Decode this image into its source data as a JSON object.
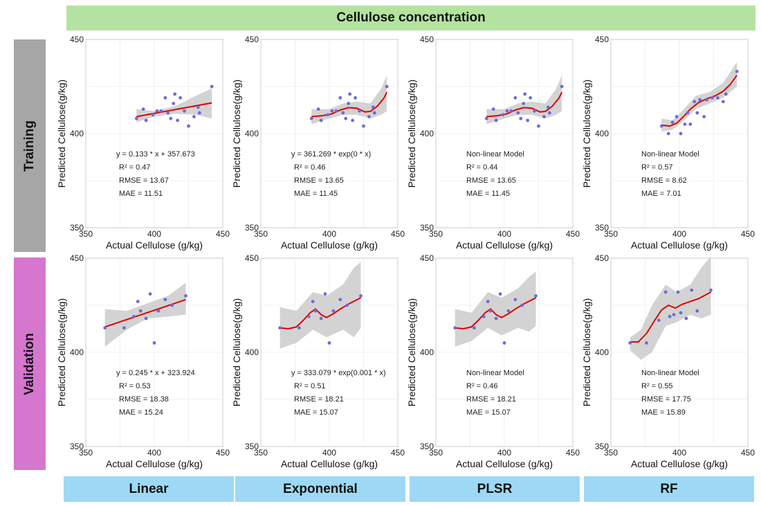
{
  "header": {
    "title": "Cellulose concentration"
  },
  "rows": [
    {
      "label": "Training",
      "color": "#a6a6a6"
    },
    {
      "label": "Validation",
      "color": "#d576cf"
    }
  ],
  "columns": [
    "Linear",
    "Exponential",
    "PLSR",
    "RF"
  ],
  "colors": {
    "band": "#d3d3d3",
    "fit": "#e00000",
    "point": "#6b6bde",
    "header": "#b4e3a1",
    "footer": "#9dd9f5"
  },
  "chart_data": [
    {
      "type": "scatter",
      "row": "Training",
      "model": "Linear",
      "xlabel": "Actual Cellulose (g/kg)",
      "ylabel": "Predicted Cellulose(g/kg)",
      "xlim": [
        350,
        450
      ],
      "ylim": [
        350,
        450
      ],
      "xticks": [
        350,
        400,
        450
      ],
      "yticks": [
        350,
        400,
        450
      ],
      "grid": true,
      "points": [
        [
          387,
          408
        ],
        [
          392,
          413
        ],
        [
          394,
          407
        ],
        [
          399,
          410
        ],
        [
          402,
          412
        ],
        [
          405,
          412
        ],
        [
          408,
          419
        ],
        [
          410,
          411
        ],
        [
          412,
          408
        ],
        [
          414,
          416
        ],
        [
          415,
          421
        ],
        [
          417,
          407
        ],
        [
          419,
          419
        ],
        [
          422,
          412
        ],
        [
          425,
          404
        ],
        [
          429,
          409
        ],
        [
          432,
          414
        ],
        [
          433,
          411
        ],
        [
          442,
          425
        ]
      ],
      "fit": [
        [
          387,
          409
        ],
        [
          442,
          416.3
        ]
      ],
      "band": [
        [
          387,
          406,
          413
        ],
        [
          400,
          409,
          412
        ],
        [
          415,
          410.5,
          414.5
        ],
        [
          430,
          410,
          420
        ],
        [
          442,
          408,
          424
        ]
      ],
      "annotations": [
        "y = 0.133 * x + 357.673",
        "R² = 0.47",
        "RMSE = 13.67",
        "MAE = 11.51"
      ]
    },
    {
      "type": "scatter",
      "row": "Training",
      "model": "Exponential",
      "xlabel": "Actual Cellulose (g/kg)",
      "ylabel": "Predicted Cellulose(g/kg)",
      "xlim": [
        350,
        450
      ],
      "ylim": [
        350,
        450
      ],
      "xticks": [
        350,
        400,
        450
      ],
      "yticks": [
        350,
        400,
        450
      ],
      "grid": true,
      "points": [
        [
          387,
          408
        ],
        [
          392,
          413
        ],
        [
          394,
          407
        ],
        [
          399,
          410
        ],
        [
          402,
          412
        ],
        [
          405,
          412
        ],
        [
          408,
          419
        ],
        [
          410,
          411
        ],
        [
          412,
          408
        ],
        [
          414,
          416
        ],
        [
          415,
          421
        ],
        [
          417,
          407
        ],
        [
          419,
          419
        ],
        [
          422,
          412
        ],
        [
          425,
          404
        ],
        [
          429,
          409
        ],
        [
          432,
          414
        ],
        [
          433,
          411
        ],
        [
          442,
          425
        ]
      ],
      "fit": [
        [
          387,
          409
        ],
        [
          395,
          409.5
        ],
        [
          402,
          410.5
        ],
        [
          408,
          412.5
        ],
        [
          414,
          413.8
        ],
        [
          420,
          413.5
        ],
        [
          426,
          411.5
        ],
        [
          430,
          411.8
        ],
        [
          435,
          414.5
        ],
        [
          440,
          419
        ],
        [
          442,
          422
        ]
      ],
      "band": [
        [
          387,
          405,
          413
        ],
        [
          400,
          408,
          413
        ],
        [
          410,
          410,
          416
        ],
        [
          420,
          410,
          417
        ],
        [
          430,
          408,
          416
        ],
        [
          438,
          410,
          424
        ],
        [
          442,
          412,
          431
        ]
      ],
      "annotations": [
        "y = 361.269 * exp(0 * x)",
        "R² = 0.46",
        "RMSE = 13.65",
        "MAE = 11.45"
      ]
    },
    {
      "type": "scatter",
      "row": "Training",
      "model": "PLSR",
      "xlabel": "Actual Cellulose (g/kg)",
      "ylabel": "Predicted Cellulose(g/kg)",
      "xlim": [
        350,
        450
      ],
      "ylim": [
        350,
        450
      ],
      "xticks": [
        350,
        400,
        450
      ],
      "yticks": [
        350,
        400,
        450
      ],
      "grid": true,
      "points": [
        [
          387,
          408
        ],
        [
          392,
          413
        ],
        [
          394,
          407
        ],
        [
          399,
          410
        ],
        [
          402,
          412
        ],
        [
          405,
          412
        ],
        [
          408,
          419
        ],
        [
          410,
          411
        ],
        [
          412,
          408
        ],
        [
          414,
          416
        ],
        [
          415,
          421
        ],
        [
          417,
          407
        ],
        [
          419,
          419
        ],
        [
          422,
          412
        ],
        [
          425,
          404
        ],
        [
          429,
          409
        ],
        [
          432,
          414
        ],
        [
          433,
          411
        ],
        [
          442,
          425
        ]
      ],
      "fit": [
        [
          387,
          409
        ],
        [
          395,
          409.5
        ],
        [
          402,
          410.5
        ],
        [
          408,
          412.5
        ],
        [
          414,
          413.8
        ],
        [
          420,
          413.5
        ],
        [
          426,
          411.5
        ],
        [
          430,
          411.8
        ],
        [
          435,
          414.5
        ],
        [
          440,
          419
        ],
        [
          442,
          422
        ]
      ],
      "band": [
        [
          387,
          405,
          413
        ],
        [
          400,
          408,
          413
        ],
        [
          410,
          410,
          416
        ],
        [
          420,
          410,
          417
        ],
        [
          430,
          408,
          416
        ],
        [
          438,
          410,
          424
        ],
        [
          442,
          412,
          431
        ]
      ],
      "annotations": [
        "Non-linear Model",
        "R² = 0.44",
        "RMSE = 13.65",
        "MAE = 11.45"
      ]
    },
    {
      "type": "scatter",
      "row": "Training",
      "model": "RF",
      "xlabel": "Actual Cellulose (g/kg)",
      "ylabel": "Predicted Cellulose(g/kg)",
      "xlim": [
        350,
        450
      ],
      "ylim": [
        350,
        450
      ],
      "xticks": [
        350,
        400,
        450
      ],
      "yticks": [
        350,
        400,
        450
      ],
      "grid": true,
      "points": [
        [
          387,
          404
        ],
        [
          392,
          400
        ],
        [
          395,
          406
        ],
        [
          398,
          409
        ],
        [
          401,
          400
        ],
        [
          404,
          405
        ],
        [
          406,
          411
        ],
        [
          408,
          405
        ],
        [
          411,
          417
        ],
        [
          413,
          411
        ],
        [
          415,
          418
        ],
        [
          418,
          409
        ],
        [
          420,
          418
        ],
        [
          424,
          419
        ],
        [
          428,
          419
        ],
        [
          432,
          417
        ],
        [
          434,
          421
        ],
        [
          442,
          433
        ]
      ],
      "fit": [
        [
          387,
          404.5
        ],
        [
          393,
          404
        ],
        [
          398,
          405.5
        ],
        [
          403,
          409
        ],
        [
          408,
          413
        ],
        [
          414,
          416.5
        ],
        [
          420,
          418.5
        ],
        [
          426,
          420
        ],
        [
          432,
          422.5
        ],
        [
          437,
          426
        ],
        [
          442,
          431
        ]
      ],
      "band": [
        [
          387,
          401,
          408
        ],
        [
          395,
          402,
          407
        ],
        [
          402,
          406,
          412
        ],
        [
          412,
          413,
          420
        ],
        [
          422,
          416,
          422
        ],
        [
          432,
          419,
          427
        ],
        [
          442,
          425,
          438
        ]
      ],
      "annotations": [
        "Non-linear Model",
        "R² = 0.57",
        "RMSE = 8.62",
        "MAE = 7.01"
      ]
    },
    {
      "type": "scatter",
      "row": "Validation",
      "model": "Linear",
      "xlabel": "Actual Cellulose (g/kg)",
      "ylabel": "Predicted Cellulose(g/kg)",
      "xlim": [
        350,
        450
      ],
      "ylim": [
        350,
        450
      ],
      "xticks": [
        350,
        400,
        450
      ],
      "yticks": [
        350,
        400,
        450
      ],
      "grid": true,
      "points": [
        [
          364,
          413
        ],
        [
          378,
          413
        ],
        [
          385,
          419
        ],
        [
          388,
          427
        ],
        [
          390,
          422
        ],
        [
          394,
          418
        ],
        [
          397,
          431
        ],
        [
          400,
          405
        ],
        [
          403,
          422
        ],
        [
          408,
          428
        ],
        [
          413,
          425
        ],
        [
          423,
          430
        ]
      ],
      "fit": [
        [
          364,
          413.5
        ],
        [
          423,
          428
        ]
      ],
      "band": [
        [
          364,
          403,
          423
        ],
        [
          380,
          412,
          422
        ],
        [
          395,
          418,
          426
        ],
        [
          410,
          419,
          430
        ],
        [
          423,
          420,
          437
        ]
      ],
      "annotations": [
        "y = 0.245 * x + 323.924",
        "R² = 0.53",
        "RMSE = 18.38",
        "MAE = 15.24"
      ]
    },
    {
      "type": "scatter",
      "row": "Validation",
      "model": "Exponential",
      "xlabel": "Actual Cellulose (g/kg)",
      "ylabel": "Predicted Cellulose(g/kg)",
      "xlim": [
        350,
        450
      ],
      "ylim": [
        350,
        450
      ],
      "xticks": [
        350,
        400,
        450
      ],
      "yticks": [
        350,
        400,
        450
      ],
      "grid": true,
      "points": [
        [
          364,
          413
        ],
        [
          378,
          413
        ],
        [
          385,
          419
        ],
        [
          388,
          427
        ],
        [
          390,
          422
        ],
        [
          394,
          418
        ],
        [
          397,
          431
        ],
        [
          400,
          405
        ],
        [
          403,
          422
        ],
        [
          408,
          428
        ],
        [
          413,
          425
        ],
        [
          423,
          430
        ]
      ],
      "fit": [
        [
          364,
          413
        ],
        [
          370,
          412.5
        ],
        [
          376,
          413.5
        ],
        [
          381,
          417
        ],
        [
          386,
          421
        ],
        [
          390,
          423
        ],
        [
          394,
          420
        ],
        [
          398,
          418.5
        ],
        [
          403,
          420.5
        ],
        [
          408,
          423
        ],
        [
          415,
          426
        ],
        [
          423,
          429
        ]
      ],
      "band": [
        [
          364,
          402,
          424
        ],
        [
          376,
          405,
          422
        ],
        [
          388,
          412,
          432
        ],
        [
          398,
          408,
          430
        ],
        [
          410,
          412,
          436
        ],
        [
          418,
          408,
          445
        ],
        [
          423,
          413,
          448
        ]
      ],
      "annotations": [
        "y = 333.079 * exp(0.001 * x)",
        "R² = 0.51",
        "RMSE = 18.21",
        "MAE = 15.07"
      ]
    },
    {
      "type": "scatter",
      "row": "Validation",
      "model": "PLSR",
      "xlabel": "Actual Cellulose (g/kg)",
      "ylabel": "Predicted Cellulose(g/kg)",
      "xlim": [
        350,
        450
      ],
      "ylim": [
        350,
        450
      ],
      "xticks": [
        350,
        400,
        450
      ],
      "yticks": [
        350,
        400,
        450
      ],
      "grid": true,
      "points": [
        [
          364,
          413
        ],
        [
          378,
          413
        ],
        [
          385,
          419
        ],
        [
          388,
          427
        ],
        [
          390,
          422
        ],
        [
          394,
          418
        ],
        [
          397,
          431
        ],
        [
          400,
          405
        ],
        [
          403,
          422
        ],
        [
          408,
          428
        ],
        [
          413,
          425
        ],
        [
          423,
          430
        ]
      ],
      "fit": [
        [
          364,
          413
        ],
        [
          370,
          412.5
        ],
        [
          376,
          413.5
        ],
        [
          381,
          417
        ],
        [
          386,
          421
        ],
        [
          390,
          423
        ],
        [
          394,
          420
        ],
        [
          398,
          418.5
        ],
        [
          403,
          420.5
        ],
        [
          408,
          423
        ],
        [
          415,
          426
        ],
        [
          423,
          429
        ]
      ],
      "band": [
        [
          364,
          403,
          423
        ],
        [
          376,
          406,
          421
        ],
        [
          388,
          413,
          432
        ],
        [
          398,
          409,
          429
        ],
        [
          410,
          413,
          434
        ],
        [
          418,
          411,
          440
        ],
        [
          423,
          414,
          443
        ]
      ],
      "annotations": [
        "Non-linear Model",
        "R² = 0.46",
        "RMSE = 18.21",
        "MAE = 15.07"
      ]
    },
    {
      "type": "scatter",
      "row": "Validation",
      "model": "RF",
      "xlabel": "Actual Cellulose (g/kg)",
      "ylabel": "Predicted Cellulose(g/kg)",
      "xlim": [
        350,
        450
      ],
      "ylim": [
        350,
        450
      ],
      "xticks": [
        350,
        400,
        450
      ],
      "yticks": [
        350,
        400,
        450
      ],
      "grid": true,
      "points": [
        [
          364,
          405
        ],
        [
          376,
          405
        ],
        [
          385,
          417
        ],
        [
          390,
          432
        ],
        [
          393,
          419
        ],
        [
          396,
          420
        ],
        [
          399,
          432
        ],
        [
          401,
          421
        ],
        [
          405,
          418
        ],
        [
          409,
          433
        ],
        [
          413,
          422
        ],
        [
          423,
          433
        ]
      ],
      "fit": [
        [
          364,
          405.5
        ],
        [
          370,
          405.5
        ],
        [
          376,
          410
        ],
        [
          382,
          417
        ],
        [
          387,
          422.5
        ],
        [
          392,
          425
        ],
        [
          397,
          423.5
        ],
        [
          402,
          425.5
        ],
        [
          408,
          427
        ],
        [
          414,
          428.5
        ],
        [
          423,
          432
        ]
      ],
      "band": [
        [
          364,
          401,
          408
        ],
        [
          372,
          396,
          412
        ],
        [
          380,
          400,
          425
        ],
        [
          390,
          414,
          436
        ],
        [
          398,
          416,
          432
        ],
        [
          408,
          420,
          436
        ],
        [
          416,
          418,
          445
        ],
        [
          423,
          420,
          451
        ]
      ],
      "annotations": [
        "Non-linear Model",
        "R² = 0.55",
        "RMSE = 17.75",
        "MAE = 15.89"
      ]
    }
  ]
}
